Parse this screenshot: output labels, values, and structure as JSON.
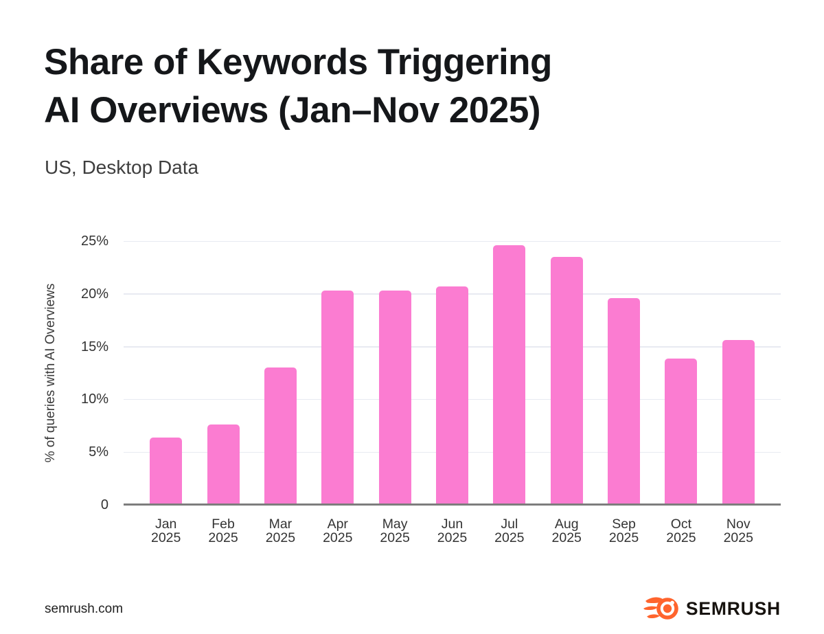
{
  "page": {
    "title_lines": [
      "Share of Keywords Triggering",
      "AI Overviews (Jan–Nov 2025)"
    ],
    "subtitle": "US, Desktop Data",
    "footer_url": "semrush.com",
    "brand_name": "SEMRUSH"
  },
  "colors": {
    "bar": "#fb7cd1",
    "grid": "#e8eaf1",
    "baseline": "#7d7d7d",
    "brand_orange": "#ff642d",
    "brand_dark": "#17130f",
    "title_text": "#15171a",
    "axis_text": "#333333"
  },
  "chart_data": {
    "type": "bar",
    "title": "Share of Keywords Triggering AI Overviews (Jan–Nov 2025)",
    "subtitle": "US, Desktop Data",
    "xlabel": "",
    "ylabel": "% of queries with AI Overviews",
    "unit": "%",
    "ylim": [
      0,
      25
    ],
    "yticks": [
      0,
      5,
      10,
      15,
      20,
      25
    ],
    "ytick_labels": [
      "0",
      "5%",
      "10%",
      "15%",
      "20%",
      "25%"
    ],
    "grid": true,
    "legend": false,
    "months": [
      "Jan",
      "Feb",
      "Mar",
      "Apr",
      "May",
      "Jun",
      "Jul",
      "Aug",
      "Sep",
      "Oct",
      "Nov"
    ],
    "year": "2025",
    "categories": [
      "Jan 2025",
      "Feb 2025",
      "Mar 2025",
      "Apr 2025",
      "May 2025",
      "Jun 2025",
      "Jul 2025",
      "Aug 2025",
      "Sep 2025",
      "Oct 2025",
      "Nov 2025"
    ],
    "values": [
      6.4,
      7.6,
      13.0,
      20.3,
      20.3,
      20.7,
      24.6,
      23.5,
      19.6,
      13.9,
      15.6
    ],
    "bar_color": "#fb7cd1"
  }
}
